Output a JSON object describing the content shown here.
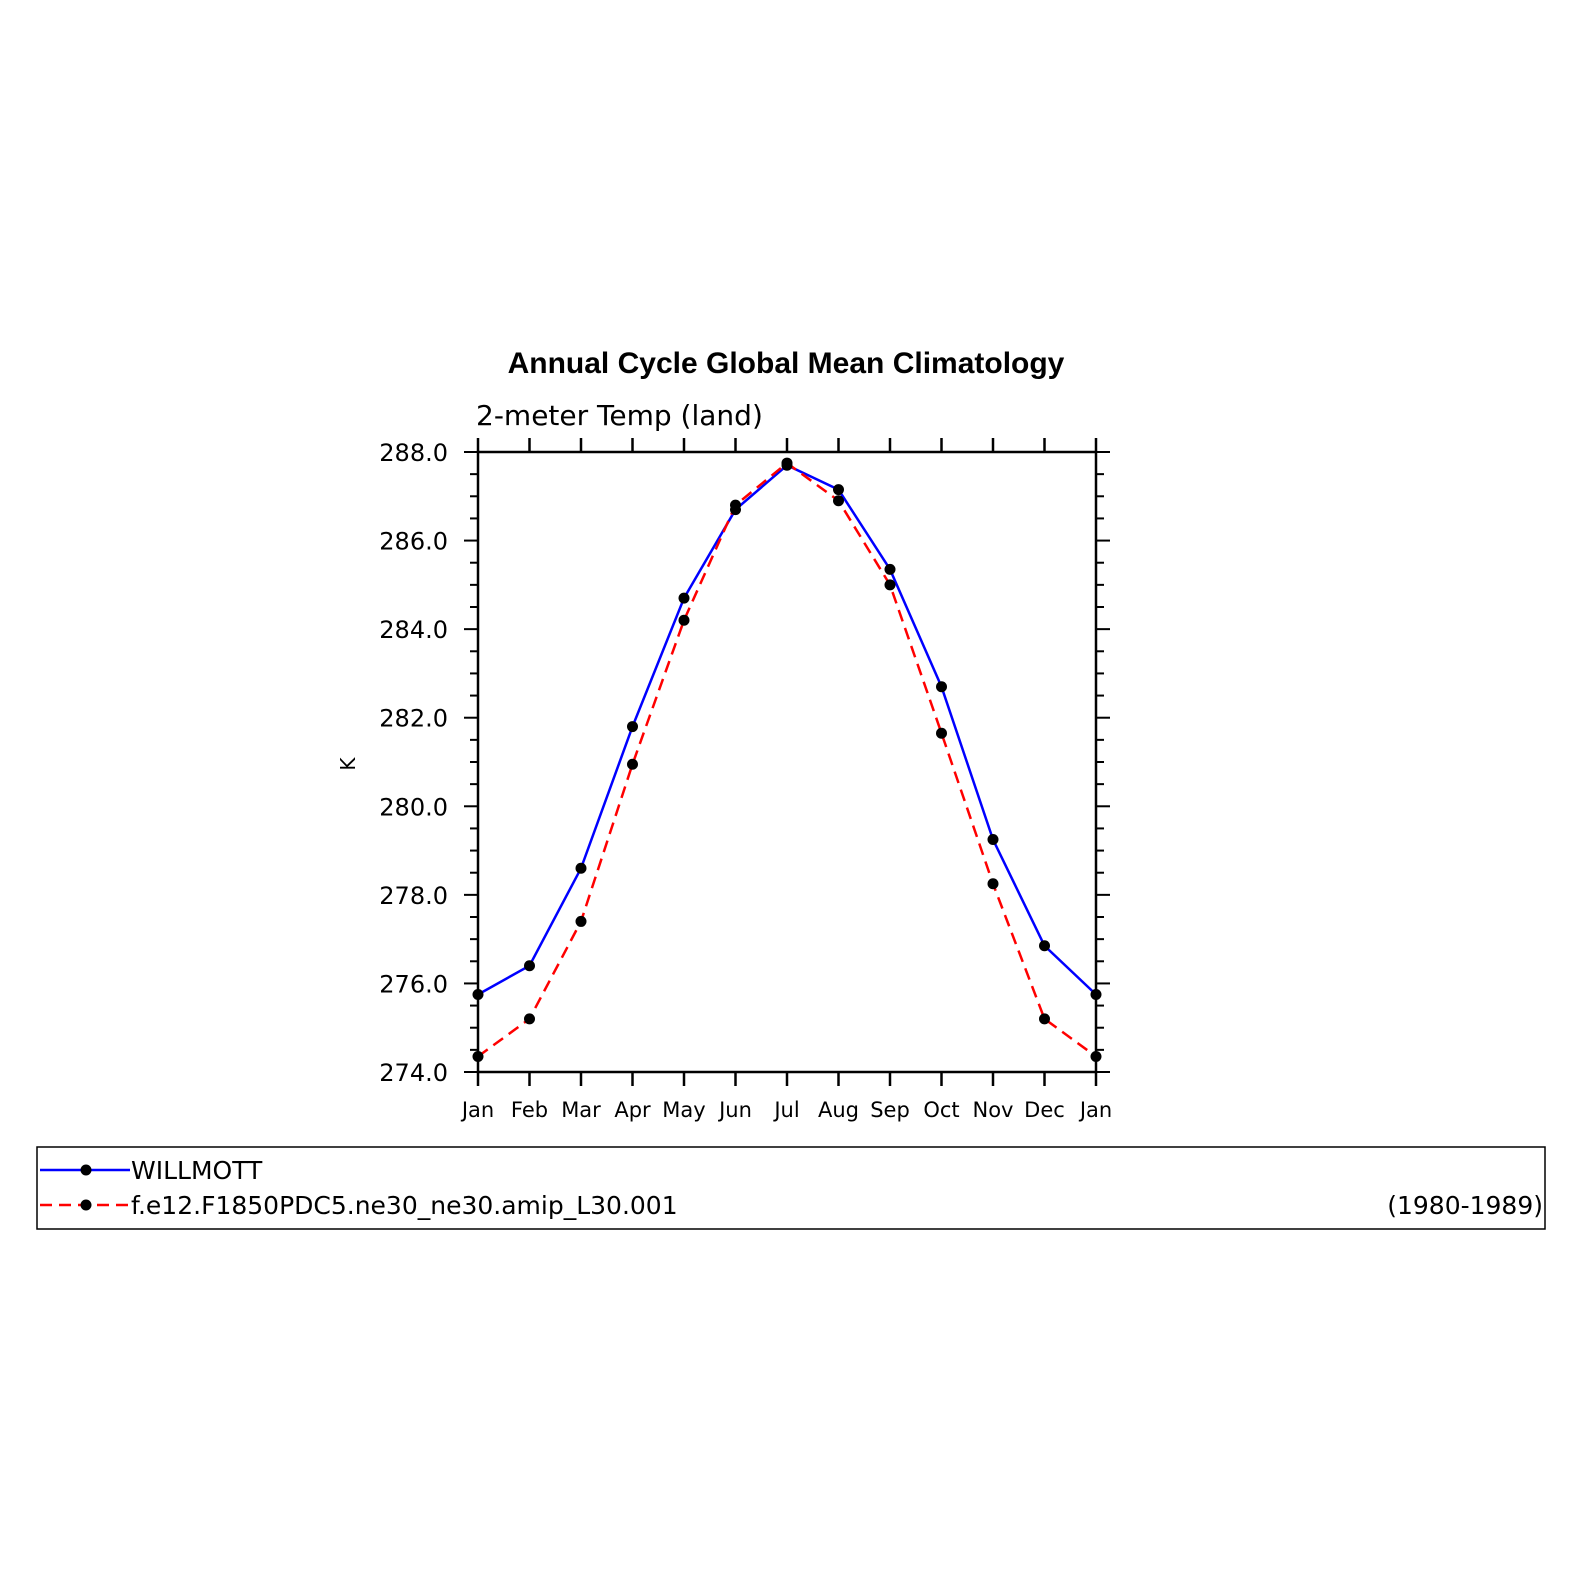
{
  "chart_data": {
    "type": "line",
    "title": "Annual Cycle Global Mean Climatology",
    "subtitle": "2-meter Temp (land)",
    "xlabel": "",
    "ylabel": "K",
    "categories": [
      "Jan",
      "Feb",
      "Mar",
      "Apr",
      "May",
      "Jun",
      "Jul",
      "Aug",
      "Sep",
      "Oct",
      "Nov",
      "Dec",
      "Jan"
    ],
    "ylim": [
      274.0,
      288.0
    ],
    "yticks": [
      "274.0",
      "276.0",
      "278.0",
      "280.0",
      "282.0",
      "284.0",
      "286.0",
      "288.0"
    ],
    "grid": false,
    "legend_position": "bottom",
    "series": [
      {
        "name": "WILLMOTT",
        "color": "#0000ff",
        "dash": "solid",
        "marker": "filled-circle",
        "values": [
          275.75,
          276.4,
          278.6,
          281.8,
          284.7,
          286.7,
          287.7,
          287.15,
          285.35,
          282.7,
          279.25,
          276.85,
          275.75
        ]
      },
      {
        "name": "f.e12.F1850PDC5.ne30_ne30.amip_L30.001",
        "color": "#ff0000",
        "dash": "dashed",
        "marker": "filled-circle",
        "values": [
          274.35,
          275.2,
          277.4,
          280.95,
          284.2,
          286.8,
          287.75,
          286.9,
          285.0,
          281.65,
          278.25,
          275.2,
          274.35
        ]
      }
    ],
    "legend_note": "(1980-1989)"
  }
}
